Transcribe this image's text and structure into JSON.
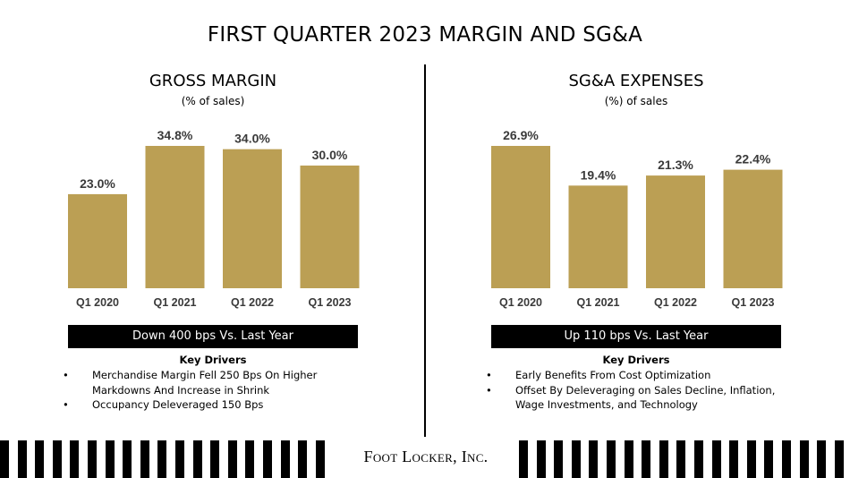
{
  "title": "FIRST QUARTER 2023 MARGIN AND SG&A",
  "brand": "Foot Locker, Inc.",
  "colors": {
    "bar": "#BB9F54",
    "banner": "#000000"
  },
  "left": {
    "title": "GROSS MARGIN",
    "subtitle": "(% of sales)",
    "banner": "Down 400 bps Vs. Last Year",
    "drivers_title": "Key Drivers",
    "drivers": [
      {
        "line1": "Merchandise Margin Fell 250 Bps On Higher",
        "line2": "Markdowns And Increase in Shrink"
      },
      {
        "line1": "Occupancy Deleveraged 150 Bps",
        "line2": ""
      }
    ]
  },
  "right": {
    "title": "SG&A EXPENSES",
    "subtitle": "(%) of sales",
    "banner": "Up 110 bps Vs. Last Year",
    "drivers_title": "Key Drivers",
    "drivers": [
      {
        "line1": "Early Benefits From Cost Optimization",
        "line2": ""
      },
      {
        "line1": "Offset By Deleveraging on Sales Decline, Inflation,",
        "line2": "Wage Investments, and Technology"
      }
    ]
  },
  "chart_data": [
    {
      "type": "bar",
      "title": "GROSS MARGIN",
      "subtitle": "(% of sales)",
      "categories": [
        "Q1 2020",
        "Q1 2021",
        "Q1 2022",
        "Q1 2023"
      ],
      "values": [
        23.0,
        34.8,
        34.0,
        30.0
      ],
      "labels": [
        "23.0%",
        "34.8%",
        "34.0%",
        "30.0%"
      ],
      "ylim": [
        0,
        34.8
      ],
      "grid": false
    },
    {
      "type": "bar",
      "title": "SG&A EXPENSES",
      "subtitle": "(%) of sales",
      "categories": [
        "Q1 2020",
        "Q1 2021",
        "Q1 2022",
        "Q1 2023"
      ],
      "values": [
        26.9,
        19.4,
        21.3,
        22.4
      ],
      "labels": [
        "26.9%",
        "19.4%",
        "21.3%",
        "22.4%"
      ],
      "ylim": [
        0,
        26.9
      ],
      "grid": false
    }
  ]
}
